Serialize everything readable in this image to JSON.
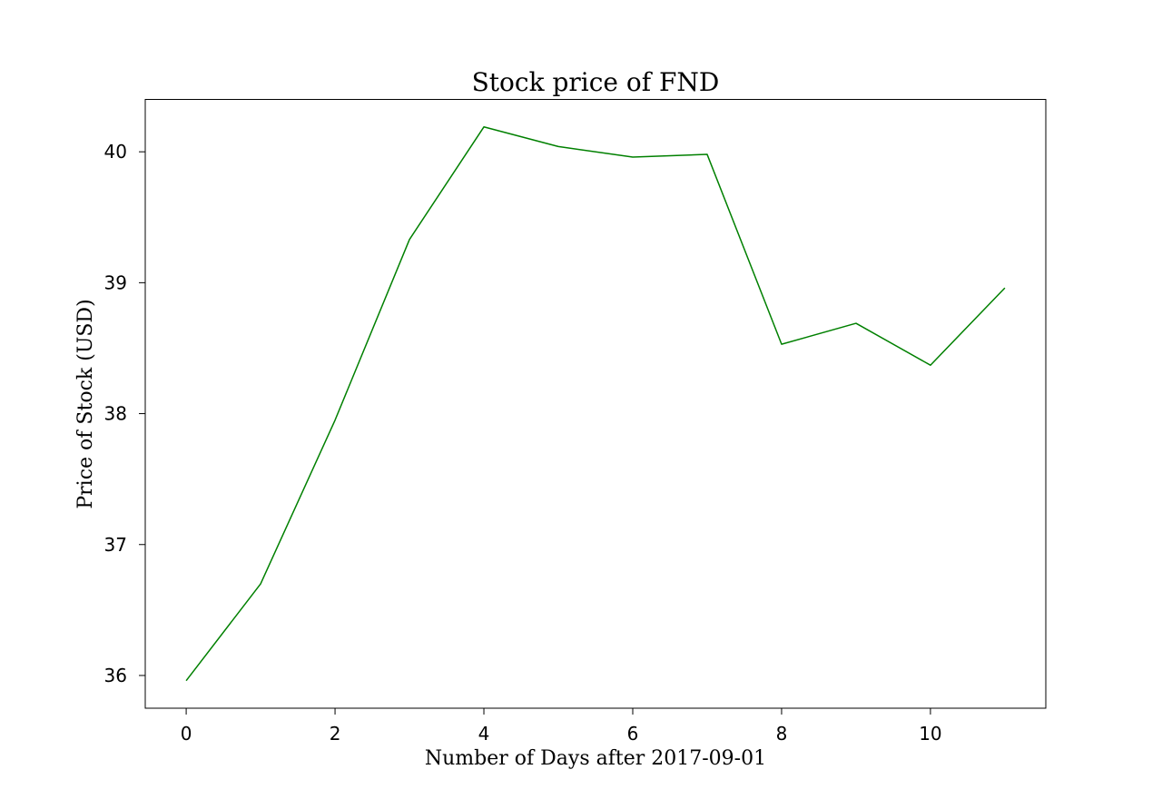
{
  "chart_data": {
    "type": "line",
    "title": "Stock price of FND",
    "xlabel": "Number of Days after 2017-09-01",
    "ylabel": "Price of Stock (USD)",
    "x": [
      0,
      1,
      2,
      3,
      4,
      5,
      6,
      7,
      8,
      9,
      10,
      11
    ],
    "series": [
      {
        "values": [
          35.96,
          36.7,
          37.95,
          39.33,
          40.19,
          40.04,
          39.96,
          39.98,
          38.53,
          38.69,
          38.37,
          38.96
        ],
        "color": "#008000"
      }
    ],
    "xlim": [
      -0.55,
      11.55
    ],
    "ylim": [
      35.75,
      40.4
    ],
    "xticks": [
      0,
      2,
      4,
      6,
      8,
      10
    ],
    "yticks": [
      36,
      37,
      38,
      39,
      40
    ],
    "grid": false,
    "legend": "none"
  }
}
